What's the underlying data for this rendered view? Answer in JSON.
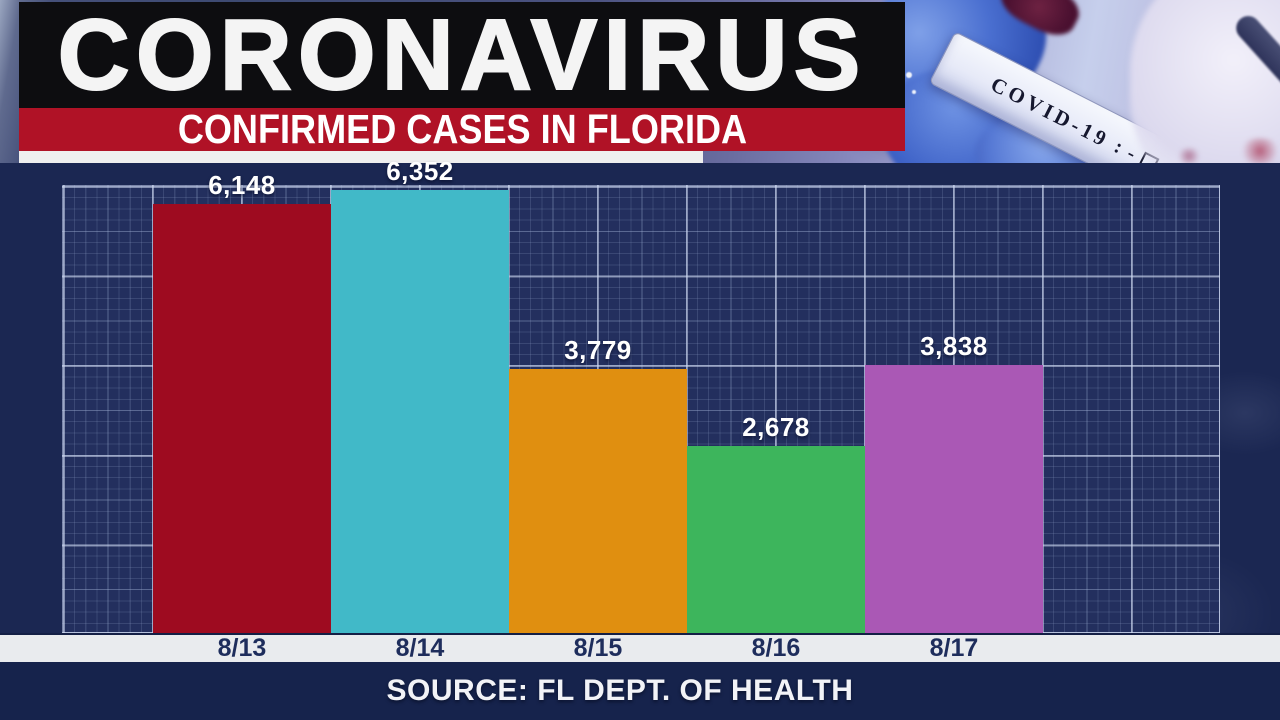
{
  "header": {
    "title": "CORONAVIRUS",
    "subtitle": "CONFIRMED CASES IN FLORIDA"
  },
  "photo": {
    "tube_label": "COVID-19",
    "colon": ":",
    "minus": "-",
    "plus": "+",
    "check": "✓"
  },
  "chart_data": {
    "type": "bar",
    "title": "CORONAVIRUS",
    "subtitle": "CONFIRMED CASES IN FLORIDA",
    "categories": [
      "8/13",
      "8/14",
      "8/15",
      "8/16",
      "8/17"
    ],
    "values": [
      6148,
      6352,
      3779,
      2678,
      3838
    ],
    "value_labels": [
      "6,148",
      "6,352",
      "3,779",
      "2,678",
      "3,838"
    ],
    "bar_colors": [
      "#9e0b20",
      "#41b9c8",
      "#e08f10",
      "#3db55c",
      "#aa58b5"
    ],
    "xlabel": "",
    "ylabel": "",
    "ylim": [
      0,
      6425
    ],
    "grid": true,
    "legend": false,
    "source": "SOURCE: FL DEPT. OF HEALTH"
  },
  "source": {
    "text": "SOURCE: FL DEPT. OF HEALTH"
  },
  "colors": {
    "banner_black": "#0d0d10",
    "banner_red": "#b01226",
    "underline_white": "#efefef",
    "navy_bg": "#1b2752",
    "plot_navy": "#232f5e",
    "axis_strip": "#e9ebee",
    "axis_text": "#1e2d5c",
    "source_navy": "#16234c",
    "value_text": "#ffffff"
  }
}
